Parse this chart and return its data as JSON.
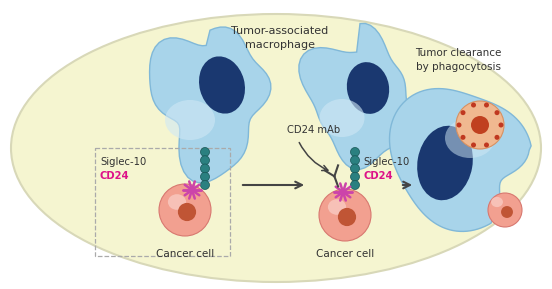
{
  "bg_white": "#ffffff",
  "outer_ellipse_fc": "#f5f5d0",
  "outer_ellipse_ec": "#d8d8b8",
  "macro_fc": "#a8d4ea",
  "macro_ec": "#80b8d8",
  "nucleus_fc": "#1a3870",
  "cancer_fc": "#f2a090",
  "cancer_ec": "#d87870",
  "cancer_nuc_fc": "#c05535",
  "teal_fc": "#2a8080",
  "teal_ec": "#185555",
  "cd24_mol_fc": "#cc44aa",
  "ab_color": "#444444",
  "arrow_color": "#444444",
  "text_color": "#333333",
  "cd24_text_color": "#dd1188",
  "dashed_box_color": "#aaaaaa",
  "engulf_fc": "#f0b890",
  "engulf_ec": "#d89060",
  "engulf_nuc_fc": "#c04020",
  "spot_fc": "#c03820",
  "label_macro": "Tumor-associated\nmacrophage",
  "label_cancer1": "Cancer cell",
  "label_cancer2": "Cancer cell",
  "label_tumor_clear": "Tumor clearance\nby phagocytosis",
  "label_siglec1": "Siglec-10",
  "label_cd24_1": "CD24",
  "label_siglec2": "Siglec-10",
  "label_cd24_2": "CD24",
  "label_cd24mab": "CD24 mAb"
}
